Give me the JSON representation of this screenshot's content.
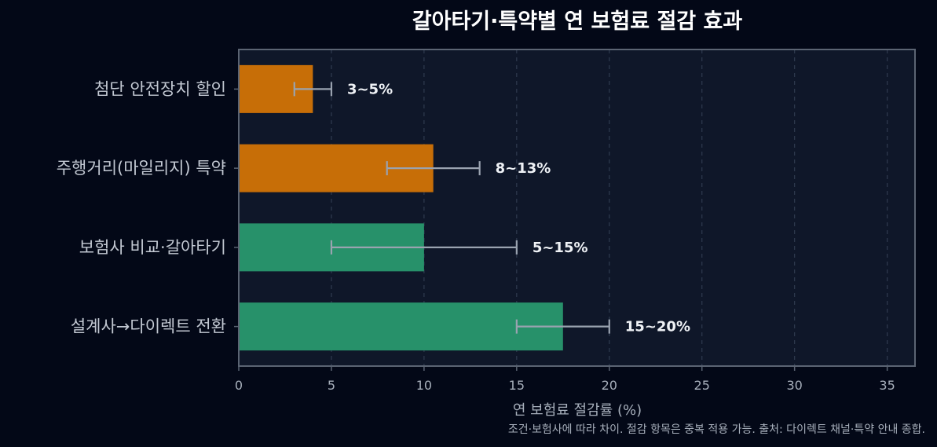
{
  "chart_data": {
    "type": "bar",
    "orientation": "horizontal",
    "title": "갈아타기·특약별 연 보험료 절감 효과",
    "xlabel": "연 보험료 절감률 (%)",
    "ylabel": "",
    "xlim": [
      0,
      36.5
    ],
    "xticks": [
      0,
      5,
      10,
      15,
      20,
      25,
      30,
      35
    ],
    "grid": "x-dashed",
    "footnote": "조건·보험사에 따라 차이. 절감 항목은 중복 적용 가능. 출처: 다이렉트 채널·특약 안내 종합.",
    "categories": [
      "첨단 안전장치 할인",
      "주행거리(마일리지) 특약",
      "보험사 비교·갈아타기",
      "설계사→다이렉트 전환"
    ],
    "values": [
      4,
      10.5,
      10,
      17.5
    ],
    "ranges": [
      [
        3,
        5
      ],
      [
        8,
        13
      ],
      [
        5,
        15
      ],
      [
        15,
        20
      ]
    ],
    "data_labels": [
      "3~5%",
      "8~13%",
      "5~15%",
      "15~20%"
    ],
    "bar_colors": [
      "#c76e07",
      "#c76e07",
      "#27916a",
      "#27916a"
    ],
    "colors": {
      "background": "#030817",
      "plot_background": "#0f1729",
      "axis": "#5b6473",
      "grid": "#2f3a4f",
      "error_bar": "#9aa3b0"
    }
  }
}
